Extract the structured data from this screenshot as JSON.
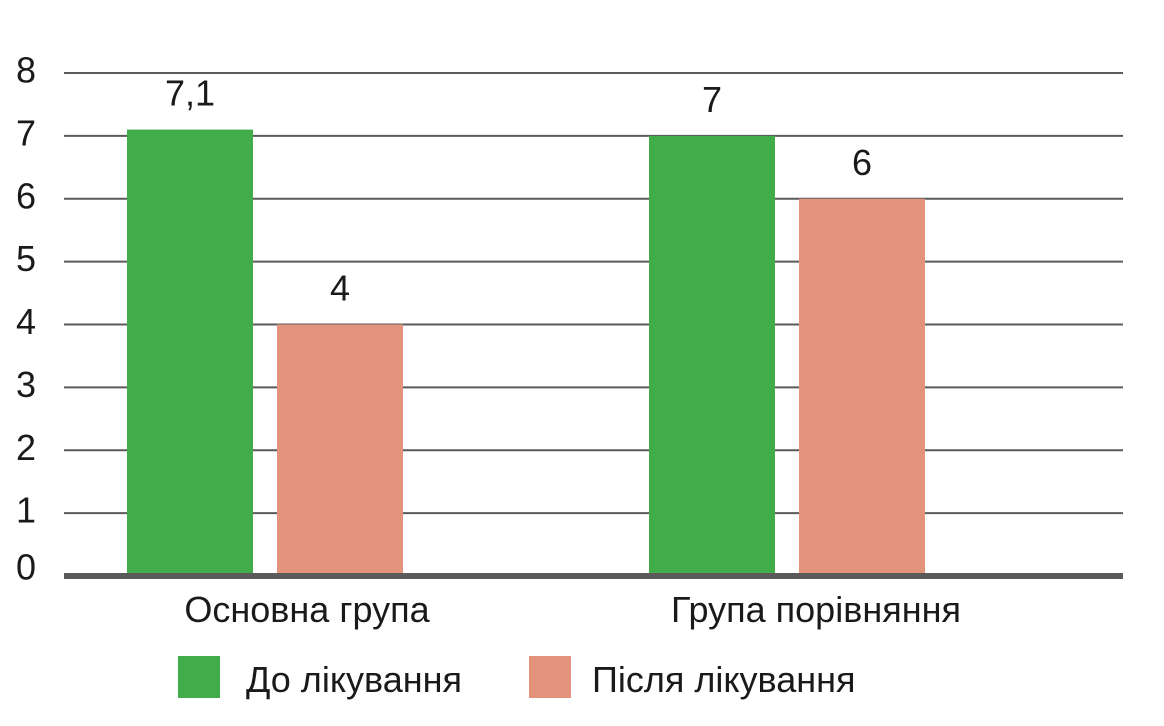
{
  "chart_data": {
    "type": "bar",
    "categories": [
      "Основна група",
      "Група порівняння"
    ],
    "series": [
      {
        "name": "До лікування",
        "values": [
          7.1,
          7
        ],
        "labels": [
          "7,1",
          "7"
        ],
        "color": "#40ad4a"
      },
      {
        "name": "Після лікування",
        "values": [
          4,
          6
        ],
        "labels": [
          "4",
          "6"
        ],
        "color": "#e3937b"
      }
    ],
    "ylim": [
      0,
      8
    ],
    "yticks": [
      0,
      1,
      2,
      3,
      4,
      5,
      6,
      7,
      8
    ],
    "grid": true,
    "legend": "bottom",
    "title": "",
    "xlabel": "",
    "ylabel": "",
    "gridline_color": "#5a5a5a",
    "axis_color": "#5a5a5a"
  }
}
